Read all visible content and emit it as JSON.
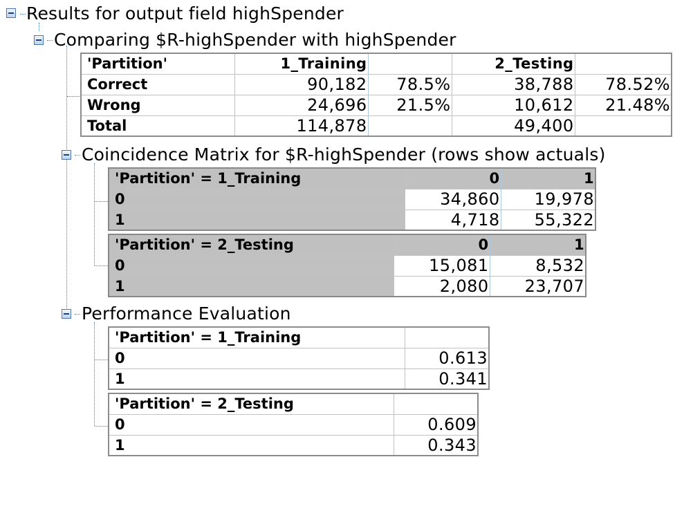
{
  "root": {
    "label": "Results for output field highSpender"
  },
  "comparing": {
    "label": "Comparing $R-highSpender with highSpender",
    "header": [
      "'Partition'",
      "1_Training",
      "",
      "2_Testing",
      ""
    ],
    "rows": [
      [
        "Correct",
        "90,182",
        "78.5%",
        "38,788",
        "78.52%"
      ],
      [
        "Wrong",
        "24,696",
        "21.5%",
        "10,612",
        "21.48%"
      ],
      [
        "Total",
        "114,878",
        "",
        "49,400",
        ""
      ]
    ]
  },
  "coincidence": {
    "label": "Coincidence Matrix for $R-highSpender (rows show actuals)",
    "tables": [
      {
        "header": [
          "'Partition' = 1_Training",
          "0",
          "1"
        ],
        "rows": [
          [
            "0",
            "34,860",
            "19,978"
          ],
          [
            "1",
            "4,718",
            "55,322"
          ]
        ]
      },
      {
        "header": [
          "'Partition' = 2_Testing",
          "0",
          "1"
        ],
        "rows": [
          [
            "0",
            "15,081",
            "8,532"
          ],
          [
            "1",
            "2,080",
            "23,707"
          ]
        ]
      }
    ]
  },
  "performance": {
    "label": "Performance Evaluation",
    "tables": [
      {
        "header": [
          "'Partition' = 1_Training",
          ""
        ],
        "rows": [
          [
            "0",
            "0.613"
          ],
          [
            "1",
            "0.341"
          ]
        ]
      },
      {
        "header": [
          "'Partition' = 2_Testing",
          ""
        ],
        "rows": [
          [
            "0",
            "0.609"
          ],
          [
            "1",
            "0.343"
          ]
        ]
      }
    ]
  }
}
